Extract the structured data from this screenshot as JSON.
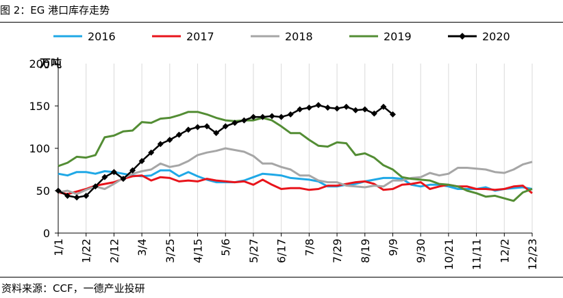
{
  "figure": {
    "title": "图 2：EG 港口库存走势",
    "source": "资料来源：CCF，一德产业投研"
  },
  "chart_data": {
    "type": "line",
    "title": "",
    "xlabel": "",
    "ylabel": "万吨",
    "ylim": [
      0,
      200
    ],
    "yticks": [
      0,
      50,
      100,
      150,
      200
    ],
    "grid": "vertical",
    "legend_position": "top",
    "x_tick_labels": [
      "1/1",
      "1/22",
      "2/12",
      "3/4",
      "3/25",
      "4/15",
      "5/6",
      "5/27",
      "6/17",
      "7/8",
      "7/29",
      "8/19",
      "9/9",
      "9/30",
      "10/21",
      "11/11",
      "12/2",
      "12/23"
    ],
    "x_range_weeks": [
      0,
      51
    ],
    "series": [
      {
        "name": "2016",
        "color": "#1fa8e6",
        "marker": "none",
        "values": [
          70,
          68,
          72,
          72,
          70,
          73,
          72,
          70,
          68,
          67,
          68,
          74,
          74,
          67,
          72,
          67,
          63,
          60,
          60,
          60,
          62,
          66,
          70,
          69,
          68,
          65,
          64,
          63,
          61,
          55,
          55,
          57,
          58,
          61,
          63,
          65,
          65,
          64,
          57,
          55,
          57,
          57,
          55,
          52,
          52,
          52,
          54,
          50,
          52,
          53,
          54,
          52
        ]
      },
      {
        "name": "2017",
        "color": "#e8141b",
        "marker": "none",
        "values": [
          48,
          46,
          49,
          52,
          56,
          58,
          60,
          64,
          67,
          68,
          62,
          66,
          65,
          61,
          62,
          61,
          64,
          62,
          61,
          60,
          61,
          57,
          63,
          57,
          52,
          53,
          53,
          51,
          52,
          56,
          56,
          58,
          60,
          61,
          58,
          51,
          52,
          57,
          58,
          60,
          52,
          55,
          57,
          55,
          55,
          52,
          52,
          51,
          52,
          55,
          56,
          47
        ]
      },
      {
        "name": "2018",
        "color": "#a6a6a6",
        "marker": "none",
        "values": [
          48,
          50,
          46,
          51,
          55,
          52,
          58,
          65,
          70,
          73,
          75,
          82,
          78,
          80,
          85,
          92,
          95,
          97,
          100,
          98,
          96,
          91,
          82,
          82,
          78,
          75,
          68,
          68,
          62,
          60,
          60,
          56,
          55,
          54,
          56,
          55,
          62,
          62,
          65,
          66,
          71,
          68,
          70,
          77,
          77,
          76,
          75,
          72,
          71,
          75,
          81,
          84
        ]
      },
      {
        "name": "2019",
        "color": "#538d34",
        "marker": "none",
        "values": [
          79,
          83,
          90,
          89,
          92,
          113,
          115,
          120,
          121,
          131,
          130,
          135,
          136,
          139,
          143,
          143,
          140,
          136,
          133,
          132,
          133,
          133,
          136,
          133,
          126,
          118,
          118,
          110,
          103,
          102,
          107,
          106,
          92,
          94,
          89,
          80,
          75,
          66,
          64,
          63,
          62,
          58,
          57,
          55,
          50,
          47,
          43,
          44,
          41,
          38,
          48,
          52
        ]
      },
      {
        "name": "2020",
        "color": "#000000",
        "marker": "diamond",
        "values": [
          50,
          44,
          42,
          44,
          55,
          66,
          72,
          64,
          74,
          85,
          95,
          105,
          110,
          116,
          122,
          125,
          126,
          118,
          126,
          130,
          133,
          137,
          137,
          138,
          137,
          140,
          146,
          148,
          151,
          148,
          147,
          149,
          145,
          146,
          141,
          149,
          140
        ]
      }
    ]
  }
}
